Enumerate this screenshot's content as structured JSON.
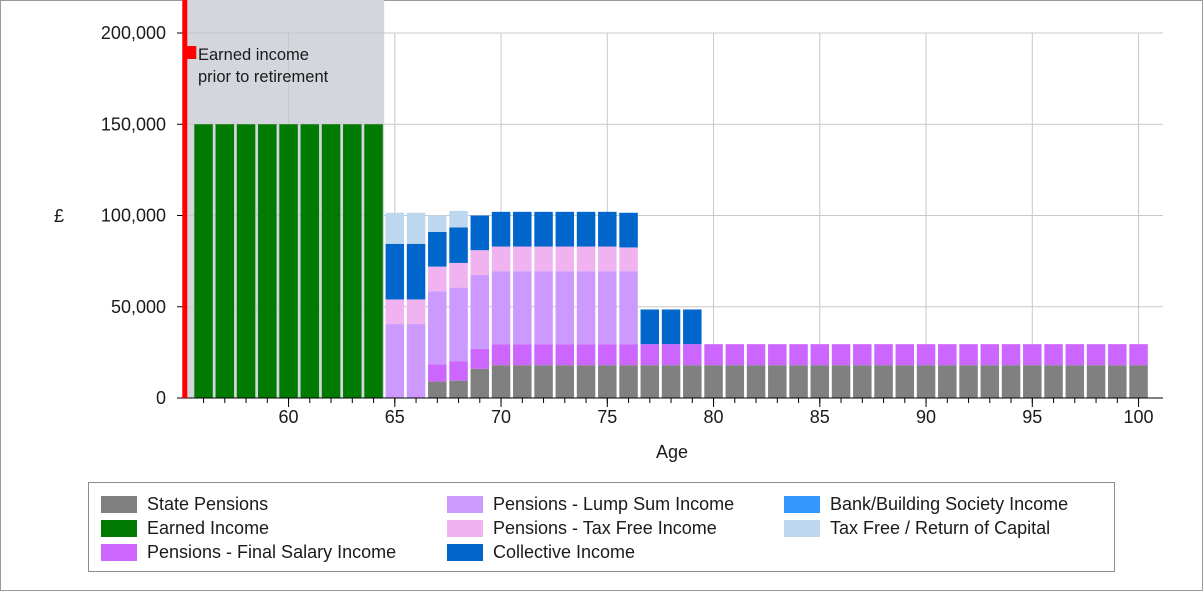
{
  "chart_data": {
    "type": "bar",
    "stacked": true,
    "xlabel": "Age",
    "ylabel": "£",
    "ylim": [
      0,
      200000
    ],
    "xlim": [
      55,
      101
    ],
    "xticks": [
      60,
      65,
      70,
      75,
      80,
      85,
      90,
      95,
      100
    ],
    "yticks": [
      0,
      50000,
      100000,
      150000,
      200000
    ],
    "ytick_labels": [
      "0",
      "50,000",
      "100,000",
      "150,000",
      "200,000"
    ],
    "grid": true,
    "legend_position": "bottom",
    "annotation": {
      "lines": [
        "Earned income",
        "prior to retirement"
      ],
      "shaded_age_range": [
        55,
        64.5
      ],
      "marker_age": 55
    },
    "ages": [
      56,
      57,
      58,
      59,
      60,
      61,
      62,
      63,
      64,
      65,
      66,
      67,
      68,
      69,
      70,
      71,
      72,
      73,
      74,
      75,
      76,
      77,
      78,
      79,
      80,
      81,
      82,
      83,
      84,
      85,
      86,
      87,
      88,
      89,
      90,
      91,
      92,
      93,
      94,
      95,
      96,
      97,
      98,
      99,
      100
    ],
    "series": [
      {
        "name": "State Pensions",
        "color": "#808080",
        "values": [
          0,
          0,
          0,
          0,
          0,
          0,
          0,
          0,
          0,
          0,
          0,
          9000,
          9500,
          16000,
          18000,
          18000,
          18000,
          18000,
          18000,
          18000,
          18000,
          18000,
          18000,
          18000,
          18000,
          18000,
          18000,
          18000,
          18000,
          18000,
          18000,
          18000,
          18000,
          18000,
          18000,
          18000,
          18000,
          18000,
          18000,
          18000,
          18000,
          18000,
          18000,
          18000,
          18000
        ]
      },
      {
        "name": "Earned Income",
        "color": "#007a00",
        "values": [
          150000,
          150000,
          150000,
          150000,
          150000,
          150000,
          150000,
          150000,
          150000,
          0,
          0,
          0,
          0,
          0,
          0,
          0,
          0,
          0,
          0,
          0,
          0,
          0,
          0,
          0,
          0,
          0,
          0,
          0,
          0,
          0,
          0,
          0,
          0,
          0,
          0,
          0,
          0,
          0,
          0,
          0,
          0,
          0,
          0,
          0,
          0
        ]
      },
      {
        "name": "Pensions - Final Salary Income",
        "color": "#cc66ff",
        "values": [
          0,
          0,
          0,
          0,
          0,
          0,
          0,
          0,
          0,
          0,
          0,
          9500,
          10500,
          11000,
          11500,
          11500,
          11500,
          11500,
          11500,
          11500,
          11500,
          11500,
          11500,
          11500,
          11500,
          11500,
          11500,
          11500,
          11500,
          11500,
          11500,
          11500,
          11500,
          11500,
          11500,
          11500,
          11500,
          11500,
          11500,
          11500,
          11500,
          11500,
          11500,
          11500,
          11500
        ]
      },
      {
        "name": "Pensions - Lump Sum Income",
        "color": "#cc99ff",
        "values": [
          0,
          0,
          0,
          0,
          0,
          0,
          0,
          0,
          0,
          40500,
          40500,
          40000,
          40500,
          40500,
          40000,
          40000,
          40000,
          40000,
          40000,
          40000,
          40000,
          0,
          0,
          0,
          0,
          0,
          0,
          0,
          0,
          0,
          0,
          0,
          0,
          0,
          0,
          0,
          0,
          0,
          0,
          0,
          0,
          0,
          0,
          0,
          0
        ]
      },
      {
        "name": "Pensions - Tax Free Income",
        "color": "#f0b3f0",
        "values": [
          0,
          0,
          0,
          0,
          0,
          0,
          0,
          0,
          0,
          13500,
          13500,
          13500,
          13500,
          13500,
          13500,
          13500,
          13500,
          13500,
          13500,
          13500,
          13000,
          0,
          0,
          0,
          0,
          0,
          0,
          0,
          0,
          0,
          0,
          0,
          0,
          0,
          0,
          0,
          0,
          0,
          0,
          0,
          0,
          0,
          0,
          0,
          0
        ]
      },
      {
        "name": "Collective Income",
        "color": "#0066cc",
        "values": [
          0,
          0,
          0,
          0,
          0,
          0,
          0,
          0,
          0,
          30500,
          30500,
          19000,
          19500,
          19000,
          19000,
          19000,
          19000,
          19000,
          19000,
          19000,
          19000,
          19000,
          19000,
          19000,
          0,
          0,
          0,
          0,
          0,
          0,
          0,
          0,
          0,
          0,
          0,
          0,
          0,
          0,
          0,
          0,
          0,
          0,
          0,
          0,
          0
        ]
      },
      {
        "name": "Bank/Building Society Income",
        "color": "#3399ff",
        "values": [
          0,
          0,
          0,
          0,
          0,
          0,
          0,
          0,
          0,
          0,
          0,
          0,
          0,
          0,
          0,
          0,
          0,
          0,
          0,
          0,
          0,
          0,
          0,
          0,
          0,
          0,
          0,
          0,
          0,
          0,
          0,
          0,
          0,
          0,
          0,
          0,
          0,
          0,
          0,
          0,
          0,
          0,
          0,
          0,
          0
        ]
      },
      {
        "name": "Tax Free / Return of Capital",
        "color": "#bdd7ee",
        "values": [
          0,
          0,
          0,
          0,
          0,
          0,
          0,
          0,
          0,
          17000,
          17000,
          9000,
          9000,
          0,
          0,
          0,
          0,
          0,
          0,
          0,
          0,
          0,
          0,
          0,
          0,
          0,
          0,
          0,
          0,
          0,
          0,
          0,
          0,
          0,
          0,
          0,
          0,
          0,
          0,
          0,
          0,
          0,
          0,
          0,
          0
        ]
      }
    ],
    "legend": [
      {
        "label": "State Pensions",
        "color": "#808080"
      },
      {
        "label": "Earned Income",
        "color": "#007a00"
      },
      {
        "label": "Pensions - Final Salary Income",
        "color": "#cc66ff"
      },
      {
        "label": "Pensions - Lump Sum Income",
        "color": "#cc99ff"
      },
      {
        "label": "Pensions - Tax Free Income",
        "color": "#f0b3f0"
      },
      {
        "label": "Collective Income",
        "color": "#0066cc"
      },
      {
        "label": "Bank/Building Society Income",
        "color": "#3399ff"
      },
      {
        "label": "Tax Free / Return of Capital",
        "color": "#bdd7ee"
      }
    ],
    "colors": {
      "shade": "#d3d6dd",
      "marker": "#ff0000",
      "grid": "#c8c8c8",
      "axis": "#000000"
    }
  }
}
